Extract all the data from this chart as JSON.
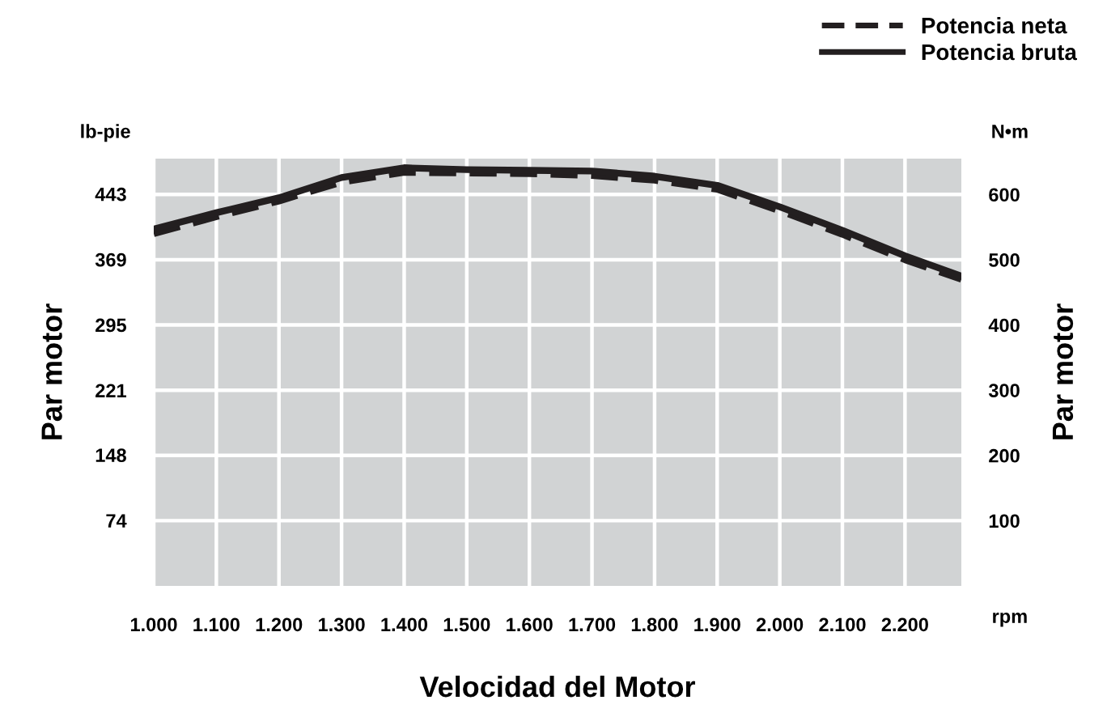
{
  "chart_data": {
    "type": "line",
    "xlabel": "Velocidad del Motor",
    "ylabel": "Par motor",
    "y2label": "Par motor",
    "annotations": [
      "lb-pie",
      "N•m",
      "rpm"
    ],
    "x": [
      1000,
      1100,
      1200,
      1300,
      1400,
      1500,
      1600,
      1700,
      1800,
      1900,
      2000,
      2100,
      2200,
      2290
    ],
    "series": [
      {
        "name": "Potencia neta",
        "color": "#231f20",
        "line_style": "dashed",
        "axis": "y2",
        "values": [
          540,
          566,
          590,
          619,
          634,
          633,
          632,
          629,
          622,
          608,
          575,
          539,
          500,
          470
        ]
      },
      {
        "name": "Potencia bruta",
        "color": "#231f20",
        "line_style": "solid",
        "axis": "y2",
        "values": [
          547,
          572,
          595,
          626,
          641,
          638,
          637,
          636,
          628,
          614,
          581,
          545,
          506,
          475
        ]
      }
    ],
    "xlim": [
      1000,
      2290
    ],
    "xticks": [
      {
        "value": 1000,
        "label": "1.000"
      },
      {
        "value": 1100,
        "label": "1.100"
      },
      {
        "value": 1200,
        "label": "1.200"
      },
      {
        "value": 1300,
        "label": "1.300"
      },
      {
        "value": 1400,
        "label": "1.400"
      },
      {
        "value": 1500,
        "label": "1.500"
      },
      {
        "value": 1600,
        "label": "1.600"
      },
      {
        "value": 1700,
        "label": "1.700"
      },
      {
        "value": 1800,
        "label": "1.800"
      },
      {
        "value": 1900,
        "label": "1.900"
      },
      {
        "value": 2000,
        "label": "2.000"
      },
      {
        "value": 2100,
        "label": "2.100"
      },
      {
        "value": 2200,
        "label": "2.200"
      }
    ],
    "ylim": [
      0,
      483
    ],
    "yticks": [
      74,
      148,
      221,
      295,
      369,
      443
    ],
    "y2lim": [
      0,
      655
    ],
    "y2ticks": [
      100,
      200,
      300,
      400,
      500,
      600
    ],
    "grid": true,
    "legend": "top right",
    "marker": "none"
  }
}
